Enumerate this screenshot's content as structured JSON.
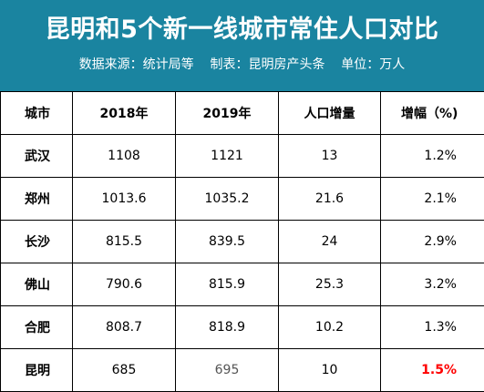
{
  "header": {
    "title": "昆明和5个新一线城市常住人口对比",
    "subtitle": "数据来源：统计局等    制表：昆明房产头条    单位：万人"
  },
  "table": {
    "columns": [
      "城市",
      "2018年",
      "2019年",
      "人口增量",
      "增幅（%)"
    ],
    "rows": [
      {
        "city": "武汉",
        "y2018": "1108",
        "y2019": "1121",
        "increase": "13",
        "growth": "1.2%"
      },
      {
        "city": "郑州",
        "y2018": "1013.6",
        "y2019": "1035.2",
        "increase": "21.6",
        "growth": "2.1%"
      },
      {
        "city": "长沙",
        "y2018": "815.5",
        "y2019": "839.5",
        "increase": "24",
        "growth": "2.9%"
      },
      {
        "city": "佛山",
        "y2018": "790.6",
        "y2019": "815.9",
        "increase": "25.3",
        "growth": "3.2%"
      },
      {
        "city": "合肥",
        "y2018": "808.7",
        "y2019": "818.9",
        "increase": "10.2",
        "growth": "1.3%"
      },
      {
        "city": "昆明",
        "y2018": "685",
        "y2019": "695",
        "increase": "10",
        "growth": "1.5%"
      }
    ]
  },
  "colors": {
    "header_bg": "#1a84a0",
    "highlight": "#ff0000"
  }
}
